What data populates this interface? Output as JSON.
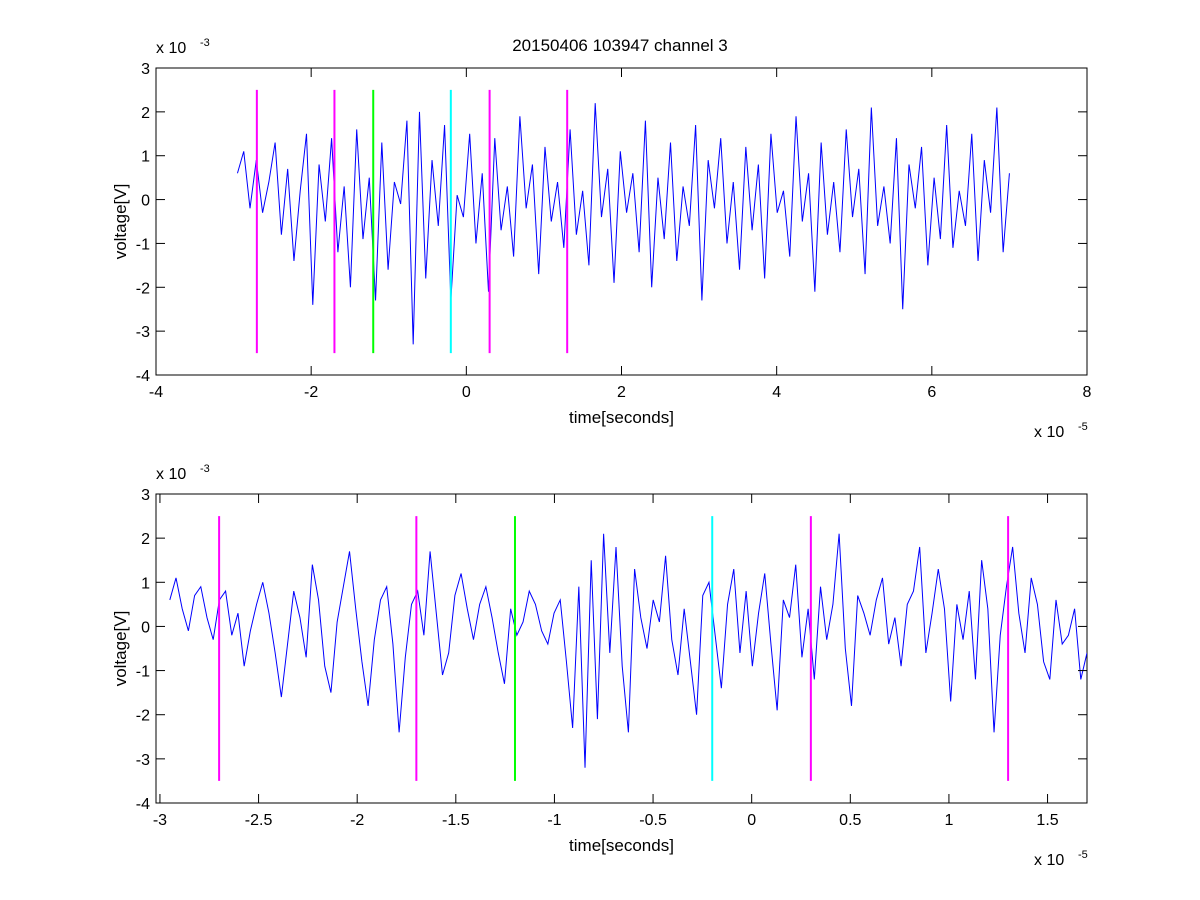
{
  "figure": {
    "title": "20150406 103947 channel 3"
  },
  "colors": {
    "signal": "#0000ff",
    "magenta": "#ff00ff",
    "green": "#00ff00",
    "cyan": "#00ffff",
    "axis": "#000000"
  },
  "chart_data": [
    {
      "type": "line",
      "title": "20150406 103947 channel 3",
      "xlabel": "time[seconds]",
      "ylabel": "voltage[V]",
      "x_multiplier": "x 10",
      "x_exponent": "-5",
      "y_multiplier": "x 10",
      "y_exponent": "-3",
      "xlim": [
        -4,
        8
      ],
      "ylim": [
        -4,
        3
      ],
      "xticks": [
        -4,
        -2,
        0,
        2,
        4,
        6,
        8
      ],
      "xtick_labels": [
        "-4",
        "-2",
        "0",
        "2",
        "4",
        "6",
        "8"
      ],
      "yticks": [
        -4,
        -3,
        -2,
        -1,
        0,
        1,
        2,
        3
      ],
      "ytick_labels": [
        "-4",
        "-3",
        "-2",
        "-1",
        "0",
        "1",
        "2",
        "3"
      ],
      "grid": false,
      "series": [
        {
          "color": "#0000ff",
          "x_range": [
            -2.95,
            7.0
          ],
          "approx_mean": 0.0,
          "approx_min": -3.3,
          "approx_max": 2.2,
          "samples": [
            0.6,
            1.1,
            -0.2,
            0.9,
            -0.3,
            0.4,
            1.3,
            -0.8,
            0.7,
            -1.4,
            0.2,
            1.5,
            -2.4,
            0.8,
            -0.5,
            1.4,
            -1.2,
            0.3,
            -2.0,
            1.6,
            -0.9,
            0.5,
            -2.3,
            1.3,
            -1.6,
            0.4,
            -0.1,
            1.8,
            -3.3,
            2.0,
            -1.8,
            0.9,
            -0.6,
            1.7,
            -2.3,
            0.1,
            -0.4,
            1.5,
            -1.0,
            0.6,
            -2.1,
            1.4,
            -0.7,
            0.3,
            -1.3,
            1.9,
            -0.2,
            0.8,
            -1.7,
            1.2,
            -0.5,
            0.4,
            -1.1,
            1.6,
            -0.8,
            0.2,
            -1.5,
            2.2,
            -0.4,
            0.7,
            -1.9,
            1.1,
            -0.3,
            0.6,
            -1.2,
            1.8,
            -2.0,
            0.5,
            -0.9,
            1.3,
            -1.4,
            0.3,
            -0.6,
            1.7,
            -2.3,
            0.9,
            -0.2,
            1.4,
            -1.0,
            0.4,
            -1.6,
            1.2,
            -0.7,
            0.8,
            -1.8,
            1.5,
            -0.3,
            0.2,
            -1.3,
            1.9,
            -0.5,
            0.6,
            -2.1,
            1.3,
            -0.8,
            0.4,
            -1.2,
            1.6,
            -0.4,
            0.7,
            -1.7,
            2.1,
            -0.6,
            0.3,
            -1.0,
            1.4,
            -2.5,
            0.8,
            -0.2,
            1.2,
            -1.5,
            0.5,
            -0.9,
            1.7,
            -1.1,
            0.2,
            -0.6,
            1.5,
            -1.4,
            0.9,
            -0.3,
            2.1,
            -1.2,
            0.6
          ]
        }
      ],
      "vlines": [
        {
          "x": -2.7,
          "color": "#ff00ff",
          "y0": -3.5,
          "y1": 2.5
        },
        {
          "x": -1.7,
          "color": "#ff00ff",
          "y0": -3.5,
          "y1": 2.5
        },
        {
          "x": -1.2,
          "color": "#00ff00",
          "y0": -3.5,
          "y1": 2.5
        },
        {
          "x": -0.2,
          "color": "#00ffff",
          "y0": -3.5,
          "y1": 2.5
        },
        {
          "x": 0.3,
          "color": "#ff00ff",
          "y0": -3.5,
          "y1": 2.5
        },
        {
          "x": 1.3,
          "color": "#ff00ff",
          "y0": -3.5,
          "y1": 2.5
        }
      ]
    },
    {
      "type": "line",
      "title": "",
      "xlabel": "time[seconds]",
      "ylabel": "voltage[V]",
      "x_multiplier": "x 10",
      "x_exponent": "-5",
      "y_multiplier": "x 10",
      "y_exponent": "-3",
      "xlim": [
        -3.02,
        1.7
      ],
      "ylim": [
        -4,
        3
      ],
      "xticks": [
        -3,
        -2.5,
        -2,
        -1.5,
        -1,
        -0.5,
        0,
        0.5,
        1,
        1.5
      ],
      "xtick_labels": [
        "-3",
        "-2.5",
        "-2",
        "-1.5",
        "-1",
        "-0.5",
        "0",
        "0.5",
        "1",
        "1.5"
      ],
      "yticks": [
        -4,
        -3,
        -2,
        -1,
        0,
        1,
        2,
        3
      ],
      "ytick_labels": [
        "-4",
        "-3",
        "-2",
        "-1",
        "0",
        "1",
        "2",
        "3"
      ],
      "grid": false,
      "series": [
        {
          "color": "#0000ff",
          "x_range": [
            -2.95,
            1.7
          ],
          "approx_mean": 0.0,
          "approx_min": -3.2,
          "approx_max": 2.1,
          "samples": [
            0.6,
            1.1,
            0.4,
            -0.1,
            0.7,
            0.9,
            0.2,
            -0.3,
            0.6,
            0.8,
            -0.2,
            0.3,
            -0.9,
            -0.1,
            0.5,
            1.0,
            0.3,
            -0.6,
            -1.6,
            -0.4,
            0.8,
            0.2,
            -0.7,
            1.4,
            0.6,
            -0.9,
            -1.5,
            0.1,
            0.9,
            1.7,
            0.4,
            -0.8,
            -1.8,
            -0.3,
            0.6,
            0.9,
            -0.4,
            -2.4,
            -0.7,
            0.5,
            0.8,
            -0.2,
            1.7,
            0.3,
            -1.1,
            -0.6,
            0.7,
            1.2,
            0.4,
            -0.3,
            0.5,
            0.9,
            0.2,
            -0.6,
            -1.3,
            0.4,
            -0.2,
            0.1,
            0.8,
            0.5,
            -0.1,
            -0.4,
            0.3,
            0.6,
            -0.8,
            -2.3,
            0.9,
            -3.2,
            1.5,
            -2.1,
            2.1,
            -0.6,
            1.8,
            -0.9,
            -2.4,
            1.3,
            0.2,
            -0.5,
            0.6,
            0.1,
            1.6,
            -0.3,
            -1.1,
            0.4,
            -0.8,
            -2.0,
            0.7,
            1.0,
            -0.2,
            -1.4,
            0.5,
            1.3,
            -0.6,
            0.8,
            -0.9,
            0.3,
            1.2,
            -0.4,
            -1.9,
            0.6,
            0.2,
            1.4,
            -0.7,
            0.4,
            -1.2,
            0.9,
            -0.3,
            0.5,
            2.1,
            -0.5,
            -1.8,
            0.7,
            0.3,
            -0.2,
            0.6,
            1.1,
            -0.4,
            0.2,
            -0.9,
            0.5,
            0.8,
            1.8,
            -0.6,
            0.3,
            1.3,
            0.4,
            -1.7,
            0.5,
            -0.3,
            0.8,
            -1.2,
            1.5,
            0.4,
            -2.4,
            -0.2,
            0.9,
            1.8,
            0.3,
            -0.6,
            1.1,
            0.5,
            -0.8,
            -1.2,
            0.6,
            -0.4,
            -0.2,
            0.4,
            -1.2,
            -0.6
          ]
        }
      ],
      "vlines": [
        {
          "x": -2.7,
          "color": "#ff00ff",
          "y0": -3.5,
          "y1": 2.5
        },
        {
          "x": -1.7,
          "color": "#ff00ff",
          "y0": -3.5,
          "y1": 2.5
        },
        {
          "x": -1.2,
          "color": "#00ff00",
          "y0": -3.5,
          "y1": 2.5
        },
        {
          "x": -0.2,
          "color": "#00ffff",
          "y0": -3.5,
          "y1": 2.5
        },
        {
          "x": 0.3,
          "color": "#ff00ff",
          "y0": -3.5,
          "y1": 2.5
        },
        {
          "x": 1.3,
          "color": "#ff00ff",
          "y0": -3.5,
          "y1": 2.5
        }
      ]
    }
  ]
}
